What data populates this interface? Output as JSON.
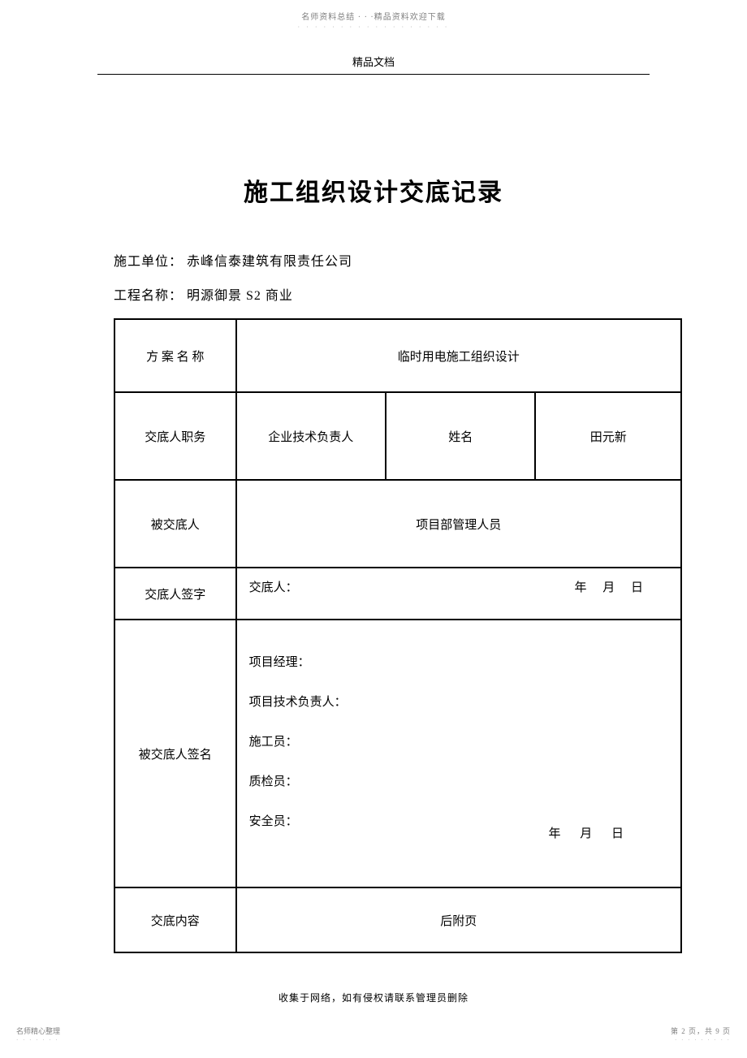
{
  "topHeader": "名师资料总结 · · ·精品资料欢迎下载",
  "topHeaderDots": "· · · · · · · · · · · · · · · · · ·",
  "subHeader": "精品文档",
  "mainTitle": "施工组织设计交底记录",
  "info": {
    "unit_label": "施工单位：",
    "unit_value": " 赤峰信泰建筑有限责任公司",
    "project_label": "工程名称：",
    "project_value": " 明源御景 S2 商业"
  },
  "table": {
    "row1": {
      "label": "方 案 名 称",
      "value": "临时用电施工组织设计"
    },
    "row2": {
      "label": "交底人职务",
      "position": "企业技术负责人",
      "name_label": "姓名",
      "name_value": "田元新"
    },
    "row3": {
      "label": "被交底人",
      "value": "项目部管理人员"
    },
    "row4": {
      "label": "交底人签字",
      "sign_label": "交底人：",
      "date": "年  月  日"
    },
    "row5": {
      "label": "被交底人签名",
      "roles": {
        "r1": "项目经理：",
        "r2": "项目技术负责人：",
        "r3": "施工员：",
        "r4": "质检员：",
        "r5": "安全员："
      },
      "date": "年 月 日"
    },
    "row6": {
      "label": "交底内容",
      "value": "后附页"
    }
  },
  "footerNote": "收集于网络，如有侵权请联系管理员删除",
  "bottomLeft": "名师精心整理",
  "bottomLeftDots": "· · · · · · ·",
  "bottomRight": "第 2 页，共 9 页",
  "bottomRightDots": "· · · · · · · · ·"
}
